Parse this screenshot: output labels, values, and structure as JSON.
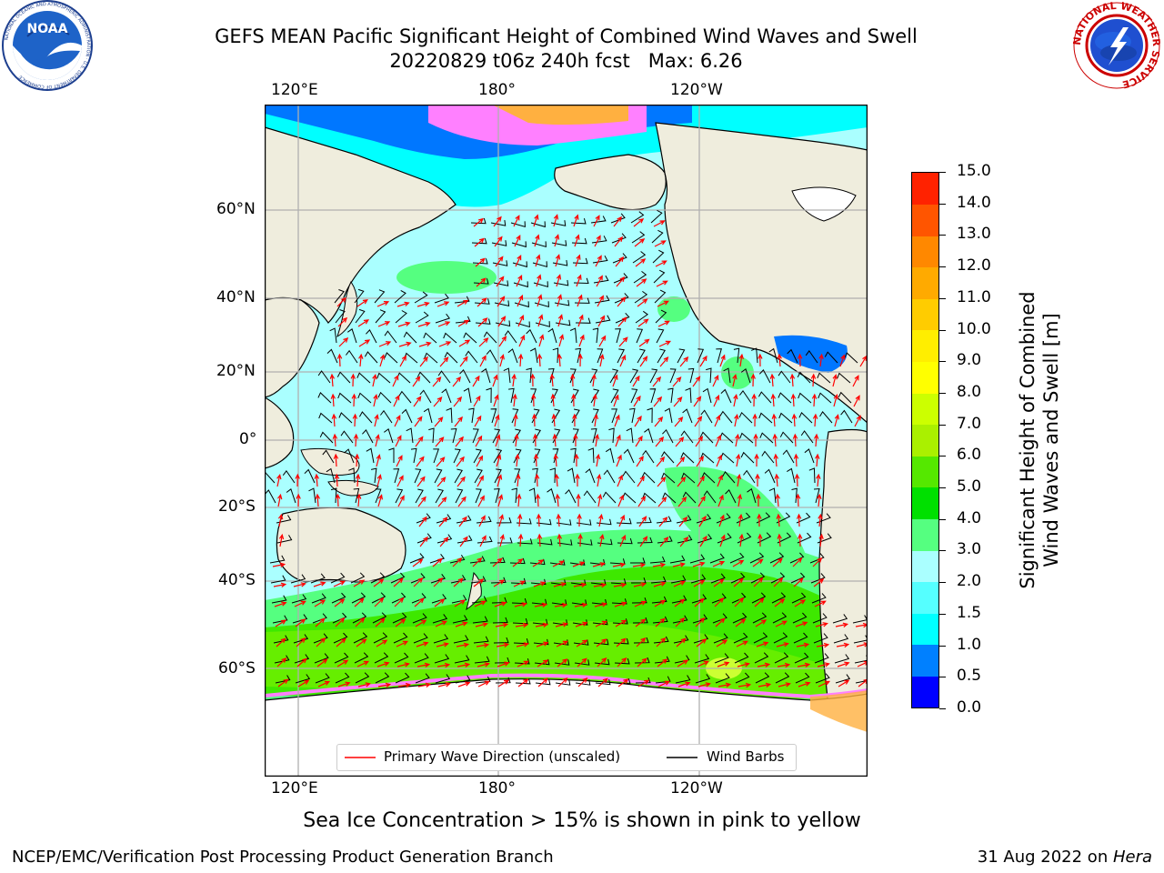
{
  "title": {
    "line1": "GEFS MEAN Pacific Significant Height of Combined Wind Waves and Swell",
    "line2": "20220829 t06z 240h fcst   Max: 6.26"
  },
  "logos": {
    "noaa_text": "NOAA",
    "noaa_ring": "NATIONAL OCEANIC AND ATMOSPHERIC ADMINISTRATION · U.S. DEPARTMENT OF COMMERCE",
    "nws_ring": "NATIONAL WEATHER SERVICE"
  },
  "map": {
    "lon_ticks_top": [
      "120°E",
      "180°",
      "120°W"
    ],
    "lon_ticks_bottom": [
      "120°E",
      "180°",
      "120°W"
    ],
    "lat_ticks": [
      "60°N",
      "40°N",
      "20°N",
      "0°",
      "20°S",
      "40°S",
      "60°S"
    ],
    "colors": {
      "land": "#efeddd",
      "ocean_low": "#aaffff",
      "ocean_mid": "#55ff80",
      "ocean_high": "#3ee800",
      "shallow": "#00ffff",
      "deep_blue": "#0077ff",
      "ice_pink": "#ff80ff",
      "ice_orange": "#ffb040",
      "grid": "#b0b0b0",
      "wave_arrow": "#ff0000",
      "barb": "#000000"
    }
  },
  "legend": {
    "wave_label": "Primary Wave Direction (unscaled)",
    "barb_label": "Wind Barbs"
  },
  "colorbar": {
    "ticks": [
      "15.0",
      "14.0",
      "13.0",
      "12.0",
      "11.0",
      "10.0",
      "9.0",
      "8.0",
      "7.0",
      "6.0",
      "5.0",
      "4.0",
      "3.0",
      "2.0",
      "1.5",
      "1.0",
      "0.5",
      "0.0"
    ],
    "label_line1": "Significant Height of Combined",
    "label_line2": "Wind Waves and Swell [m]",
    "colors": [
      "#0000ff",
      "#0080ff",
      "#00ffff",
      "#55ffff",
      "#aaffff",
      "#55ff80",
      "#00e000",
      "#55e800",
      "#aaf000",
      "#ccff00",
      "#ffff00",
      "#ffee00",
      "#ffcc00",
      "#ffaa00",
      "#ff8800",
      "#ff5500",
      "#ff2200"
    ]
  },
  "note": "Sea Ice Concentration > 15% is shown in pink to yellow",
  "footer": {
    "left": "NCEP/EMC/Verification Post Processing Product Generation Branch",
    "right_prefix": "31 Aug 2022 on ",
    "right_host": "Hera"
  }
}
